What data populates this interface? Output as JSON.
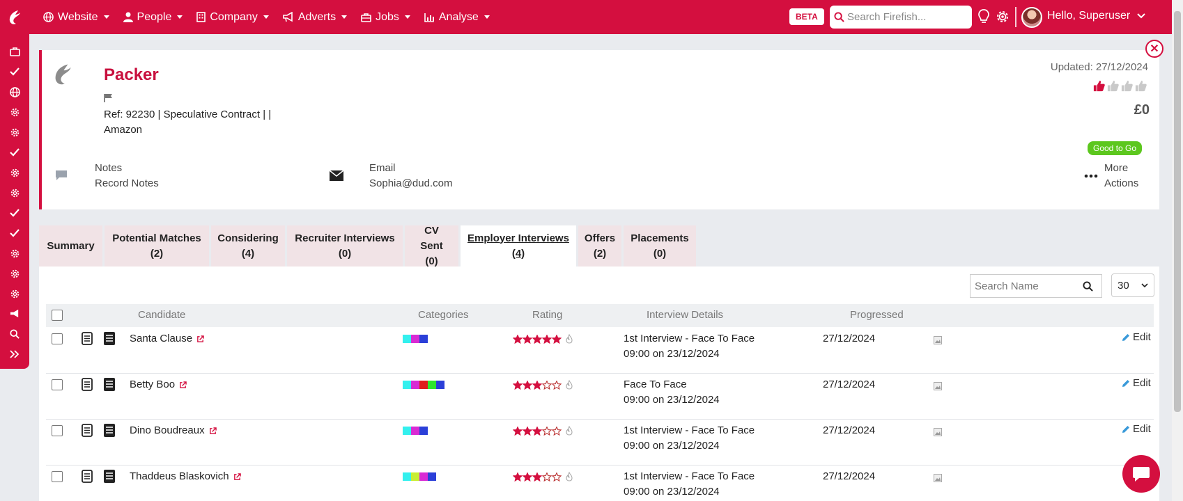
{
  "topnav": {
    "items": [
      {
        "label": "Website",
        "icon": "globe-icon"
      },
      {
        "label": "People",
        "icon": "person-icon"
      },
      {
        "label": "Company",
        "icon": "building-icon"
      },
      {
        "label": "Adverts",
        "icon": "megaphone-icon"
      },
      {
        "label": "Jobs",
        "icon": "briefcase-icon"
      },
      {
        "label": "Analyse",
        "icon": "chart-icon"
      }
    ],
    "beta": "BETA",
    "search_placeholder": "Search Firefish...",
    "greeting": "Hello, Superuser"
  },
  "job": {
    "title": "Packer",
    "ref": "Ref: 92230 | Speculative Contract | |",
    "company": "Amazon",
    "updated": "Updated: 27/12/2024",
    "value": "£0",
    "status": "Good to Go",
    "notes_label": "Notes",
    "notes_value": "Record Notes",
    "email_label": "Email",
    "email_value": "Sophia@dud.com",
    "more_line1": "More",
    "more_line2": "Actions"
  },
  "tabs": [
    {
      "label": "Summary",
      "count": ""
    },
    {
      "label": "Potential Matches",
      "count": "(2)"
    },
    {
      "label": "Considering",
      "count": "(4)"
    },
    {
      "label": "Recruiter Interviews",
      "count": "(0)"
    },
    {
      "label": "CV Sent",
      "count": "(0)"
    },
    {
      "label": "Employer Interviews",
      "count": "(4)"
    },
    {
      "label": "Offers",
      "count": "(2)"
    },
    {
      "label": "Placements",
      "count": "(0)"
    }
  ],
  "table": {
    "search_placeholder": "Search Name",
    "per_page": "30",
    "headers": {
      "candidate": "Candidate",
      "categories": "Categories",
      "rating": "Rating",
      "interview": "Interview Details",
      "progressed": "Progressed"
    },
    "edit_label": "Edit",
    "rows": [
      {
        "name": "Santa Clause",
        "rating": 5,
        "cats": [
          "#33f0ee",
          "#d82bd4",
          "#2b3fd8"
        ],
        "interview1": "1st Interview - Face To Face",
        "interview2": "09:00 on 23/12/2024",
        "progressed": "27/12/2024"
      },
      {
        "name": "Betty Boo",
        "rating": 3,
        "cats": [
          "#33f0ee",
          "#d82bd4",
          "#e01c1c",
          "#2ee62e",
          "#2b3fd8"
        ],
        "interview1": "Face To Face",
        "interview2": "09:00 on 23/12/2024",
        "progressed": "27/12/2024"
      },
      {
        "name": "Dino Boudreaux",
        "rating": 3,
        "cats": [
          "#33f0ee",
          "#d82bd4",
          "#2b3fd8"
        ],
        "interview1": "1st Interview - Face To Face",
        "interview2": "09:00 on 23/12/2024",
        "progressed": "27/12/2024"
      },
      {
        "name": "Thaddeus Blaskovich",
        "rating": 3,
        "cats": [
          "#33f0ee",
          "#c8ee33",
          "#d82bd4",
          "#2b3fd8"
        ],
        "interview1": "1st Interview - Face To Face",
        "interview2": "09:00 on 23/12/2024",
        "progressed": "27/12/2024"
      }
    ]
  },
  "colors": {
    "brand": "#d40f3f",
    "good": "#5cc71e"
  }
}
